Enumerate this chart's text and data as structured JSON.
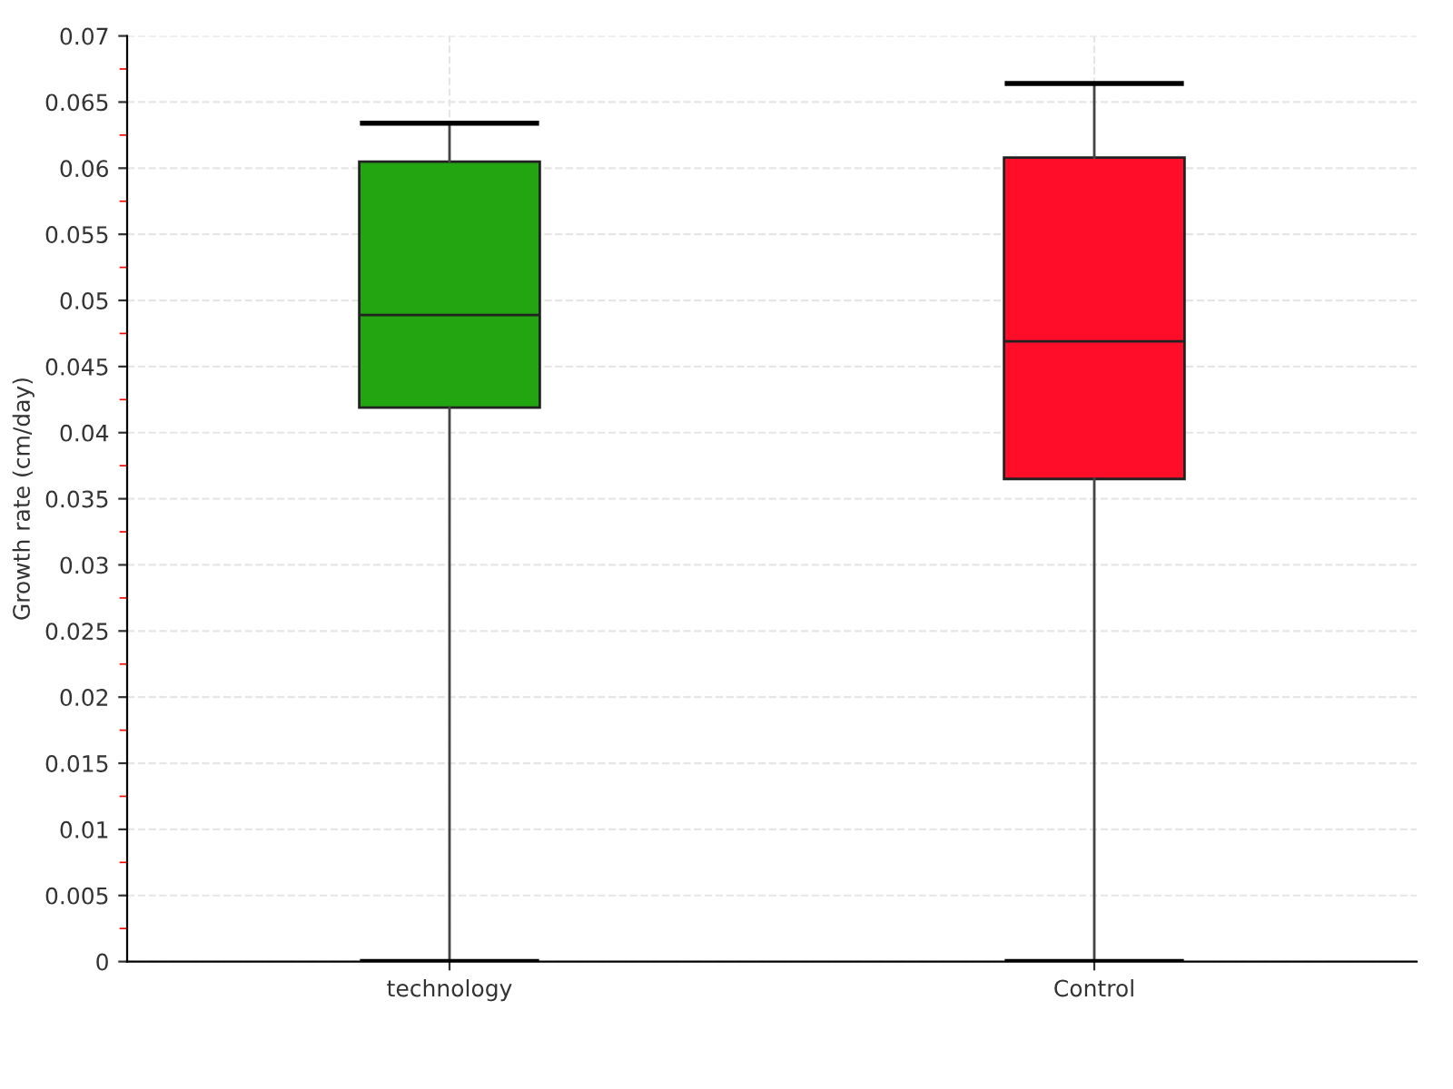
{
  "chart_data": {
    "type": "box",
    "ylabel": "Growth rate (cm/day)",
    "categories": [
      "technology",
      "Control"
    ],
    "colors": [
      "#22a511",
      "#ff0d29"
    ],
    "boxes": [
      {
        "low": 0.0,
        "q1": 0.0419,
        "median": 0.0489,
        "q3": 0.0605,
        "high": 0.0634
      },
      {
        "low": 0.0,
        "q1": 0.0365,
        "median": 0.0469,
        "q3": 0.0608,
        "high": 0.0664
      }
    ],
    "ylim": [
      0,
      0.07
    ],
    "yticks": [
      0,
      0.005,
      0.01,
      0.015,
      0.02,
      0.025,
      0.03,
      0.035,
      0.04,
      0.045,
      0.05,
      0.055,
      0.06,
      0.065,
      0.07
    ],
    "grid": true
  }
}
